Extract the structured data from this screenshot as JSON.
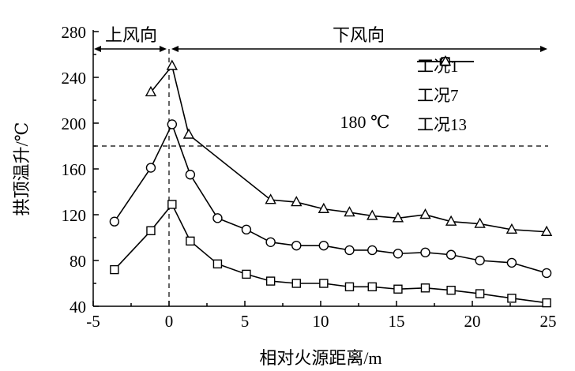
{
  "chart_data": {
    "type": "line",
    "xlabel": "相对火源距离/m",
    "ylabel": "拱顶温升/℃",
    "xlim": [
      -5,
      25
    ],
    "ylim": [
      40,
      280
    ],
    "xticks": [
      -5,
      0,
      5,
      10,
      15,
      20,
      25
    ],
    "yticks": [
      40,
      80,
      120,
      160,
      200,
      240,
      280
    ],
    "x_minor_step": 2.5,
    "y_minor_step": 20,
    "grid": false,
    "legend_position": "top-right",
    "reference_line": {
      "y": 180,
      "label": "180 ℃"
    },
    "fire_source_line_x": 0,
    "annotations": {
      "upwind": "上风向",
      "downwind": "下风向"
    },
    "series": [
      {
        "name": "工况1",
        "marker": "square",
        "points": [
          [
            -3.6,
            72
          ],
          [
            -1.2,
            106
          ],
          [
            0.2,
            129
          ],
          [
            1.4,
            97
          ],
          [
            3.2,
            77
          ],
          [
            5.1,
            68
          ],
          [
            6.7,
            62
          ],
          [
            8.4,
            60
          ],
          [
            10.2,
            60
          ],
          [
            11.9,
            57
          ],
          [
            13.4,
            57
          ],
          [
            15.1,
            55
          ],
          [
            16.9,
            56
          ],
          [
            18.6,
            54
          ],
          [
            20.5,
            51
          ],
          [
            22.6,
            47
          ],
          [
            24.9,
            43
          ]
        ]
      },
      {
        "name": "工况7",
        "marker": "circle",
        "points": [
          [
            -3.6,
            114
          ],
          [
            -1.2,
            161
          ],
          [
            0.2,
            199
          ],
          [
            1.4,
            155
          ],
          [
            3.2,
            117
          ],
          [
            5.1,
            107
          ],
          [
            6.7,
            96
          ],
          [
            8.4,
            93
          ],
          [
            10.2,
            93
          ],
          [
            11.9,
            89
          ],
          [
            13.4,
            89
          ],
          [
            15.1,
            86
          ],
          [
            16.9,
            87
          ],
          [
            18.6,
            85
          ],
          [
            20.5,
            80
          ],
          [
            22.6,
            78
          ],
          [
            24.9,
            69
          ]
        ]
      },
      {
        "name": "工况13",
        "marker": "triangle",
        "points": [
          [
            -1.2,
            227
          ],
          [
            0.2,
            250
          ],
          [
            1.3,
            190
          ],
          [
            6.7,
            133
          ],
          [
            8.4,
            131
          ],
          [
            10.2,
            125
          ],
          [
            11.9,
            122
          ],
          [
            13.4,
            119
          ],
          [
            15.1,
            117
          ],
          [
            16.9,
            120
          ],
          [
            18.6,
            114
          ],
          [
            20.5,
            112
          ],
          [
            22.6,
            107
          ],
          [
            24.9,
            105
          ]
        ]
      }
    ]
  }
}
